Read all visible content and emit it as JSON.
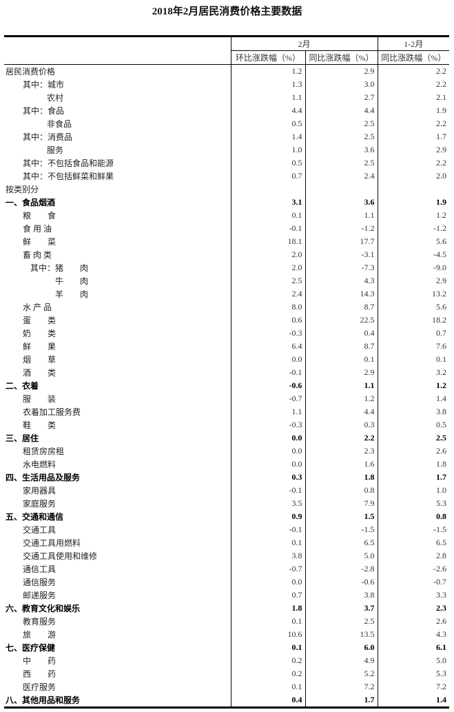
{
  "title": "2018年2月居民消费价格主要数据",
  "header": {
    "group_feb": "2月",
    "group_janfeb": "1-2月",
    "col_mom": "环比涨跌幅（%）",
    "col_yoy": "同比涨跌幅（%）",
    "col_yoy_cum": "同比涨跌幅（%）"
  },
  "rows": [
    {
      "label": "居民消费价格",
      "indent": 0,
      "mom": "1.2",
      "yoy": "2.9",
      "cum": "2.2"
    },
    {
      "label": "其中：城市",
      "indent": 1,
      "mom": "1.3",
      "yoy": "3.0",
      "cum": "2.2"
    },
    {
      "label": "农村",
      "indent": 2,
      "mom": "1.1",
      "yoy": "2.7",
      "cum": "2.1"
    },
    {
      "label": "其中：食品",
      "indent": 1,
      "mom": "4.4",
      "yoy": "4.4",
      "cum": "1.9"
    },
    {
      "label": "非食品",
      "indent": 2,
      "mom": "0.5",
      "yoy": "2.5",
      "cum": "2.2"
    },
    {
      "label": "其中：消费品",
      "indent": 1,
      "mom": "1.4",
      "yoy": "2.5",
      "cum": "1.7"
    },
    {
      "label": "服务",
      "indent": 2,
      "mom": "1.0",
      "yoy": "3.6",
      "cum": "2.9"
    },
    {
      "label": "其中：不包括食品和能源",
      "indent": 1,
      "mom": "0.5",
      "yoy": "2.5",
      "cum": "2.2"
    },
    {
      "label": "其中：不包括鲜菜和鲜果",
      "indent": 1,
      "mom": "0.7",
      "yoy": "2.4",
      "cum": "2.0"
    },
    {
      "label": "按类别分",
      "indent": 0,
      "mom": "",
      "yoy": "",
      "cum": ""
    },
    {
      "label": "一、食品烟酒",
      "indent": 0,
      "bold": true,
      "mom": "3.1",
      "yoy": "3.6",
      "cum": "1.9"
    },
    {
      "label": "粮　　食",
      "indent": 1,
      "mom": "0.1",
      "yoy": "1.1",
      "cum": "1.2"
    },
    {
      "label": "食 用 油",
      "indent": 1,
      "mom": "-0.1",
      "yoy": "-1.2",
      "cum": "-1.2"
    },
    {
      "label": "鲜　　菜",
      "indent": 1,
      "mom": "18.1",
      "yoy": "17.7",
      "cum": "5.6"
    },
    {
      "label": "畜 肉 类",
      "indent": 1,
      "mom": "2.0",
      "yoy": "-3.1",
      "cum": "-4.5"
    },
    {
      "label": "其中：猪　　肉",
      "indent": 3,
      "mom": "2.0",
      "yoy": "-7.3",
      "cum": "-9.0"
    },
    {
      "label": "牛　　肉",
      "indent": 4,
      "mom": "2.5",
      "yoy": "4.3",
      "cum": "2.9"
    },
    {
      "label": "羊　　肉",
      "indent": 4,
      "mom": "2.4",
      "yoy": "14.3",
      "cum": "13.2"
    },
    {
      "label": "水 产 品",
      "indent": 1,
      "mom": "8.0",
      "yoy": "8.7",
      "cum": "5.6"
    },
    {
      "label": "蛋　　类",
      "indent": 1,
      "mom": "0.6",
      "yoy": "22.5",
      "cum": "18.2"
    },
    {
      "label": "奶　　类",
      "indent": 1,
      "mom": "-0.3",
      "yoy": "0.4",
      "cum": "0.7"
    },
    {
      "label": "鲜　　果",
      "indent": 1,
      "mom": "6.4",
      "yoy": "8.7",
      "cum": "7.6"
    },
    {
      "label": "烟　　草",
      "indent": 1,
      "mom": "0.0",
      "yoy": "0.1",
      "cum": "0.1"
    },
    {
      "label": "酒　　类",
      "indent": 1,
      "mom": "-0.1",
      "yoy": "2.9",
      "cum": "3.2"
    },
    {
      "label": "二、衣着",
      "indent": 0,
      "bold": true,
      "mom": "-0.6",
      "yoy": "1.1",
      "cum": "1.2"
    },
    {
      "label": "服　　装",
      "indent": 1,
      "mom": "-0.7",
      "yoy": "1.2",
      "cum": "1.4"
    },
    {
      "label": "衣着加工服务费",
      "indent": 1,
      "mom": "1.1",
      "yoy": "4.4",
      "cum": "3.8"
    },
    {
      "label": "鞋　　类",
      "indent": 1,
      "mom": "-0.3",
      "yoy": "0.3",
      "cum": "0.5"
    },
    {
      "label": "三、居住",
      "indent": 0,
      "bold": true,
      "mom": "0.0",
      "yoy": "2.2",
      "cum": "2.5"
    },
    {
      "label": "租赁房房租",
      "indent": 1,
      "mom": "0.0",
      "yoy": "2.3",
      "cum": "2.6"
    },
    {
      "label": "水电燃料",
      "indent": 1,
      "mom": "0.0",
      "yoy": "1.6",
      "cum": "1.8"
    },
    {
      "label": "四、生活用品及服务",
      "indent": 0,
      "bold": true,
      "mom": "0.3",
      "yoy": "1.8",
      "cum": "1.7"
    },
    {
      "label": "家用器具",
      "indent": 1,
      "mom": "-0.1",
      "yoy": "0.8",
      "cum": "1.0"
    },
    {
      "label": "家庭服务",
      "indent": 1,
      "mom": "3.5",
      "yoy": "7.9",
      "cum": "5.3"
    },
    {
      "label": "五、交通和通信",
      "indent": 0,
      "bold": true,
      "mom": "0.9",
      "yoy": "1.5",
      "cum": "0.8"
    },
    {
      "label": "交通工具",
      "indent": 1,
      "mom": "-0.1",
      "yoy": "-1.5",
      "cum": "-1.5"
    },
    {
      "label": "交通工具用燃料",
      "indent": 1,
      "mom": "0.1",
      "yoy": "6.5",
      "cum": "6.5"
    },
    {
      "label": "交通工具使用和维修",
      "indent": 1,
      "mom": "3.8",
      "yoy": "5.0",
      "cum": "2.8"
    },
    {
      "label": "通信工具",
      "indent": 1,
      "mom": "-0.7",
      "yoy": "-2.8",
      "cum": "-2.6"
    },
    {
      "label": "通信服务",
      "indent": 1,
      "mom": "0.0",
      "yoy": "-0.6",
      "cum": "-0.7"
    },
    {
      "label": "邮递服务",
      "indent": 1,
      "mom": "0.7",
      "yoy": "3.8",
      "cum": "3.3"
    },
    {
      "label": "六、教育文化和娱乐",
      "indent": 0,
      "bold": true,
      "mom": "1.8",
      "yoy": "3.7",
      "cum": "2.3"
    },
    {
      "label": "教育服务",
      "indent": 1,
      "mom": "0.1",
      "yoy": "2.5",
      "cum": "2.6"
    },
    {
      "label": "旅　　游",
      "indent": 1,
      "mom": "10.6",
      "yoy": "13.5",
      "cum": "4.3"
    },
    {
      "label": "七、医疗保健",
      "indent": 0,
      "bold": true,
      "mom": "0.1",
      "yoy": "6.0",
      "cum": "6.1"
    },
    {
      "label": "中　　药",
      "indent": 1,
      "mom": "0.2",
      "yoy": "4.9",
      "cum": "5.0"
    },
    {
      "label": "西　　药",
      "indent": 1,
      "mom": "0.2",
      "yoy": "5.2",
      "cum": "5.3"
    },
    {
      "label": "医疗服务",
      "indent": 1,
      "mom": "0.1",
      "yoy": "7.2",
      "cum": "7.2"
    },
    {
      "label": "八、其他用品和服务",
      "indent": 0,
      "bold": true,
      "mom": "0.4",
      "yoy": "1.7",
      "cum": "1.4"
    }
  ]
}
